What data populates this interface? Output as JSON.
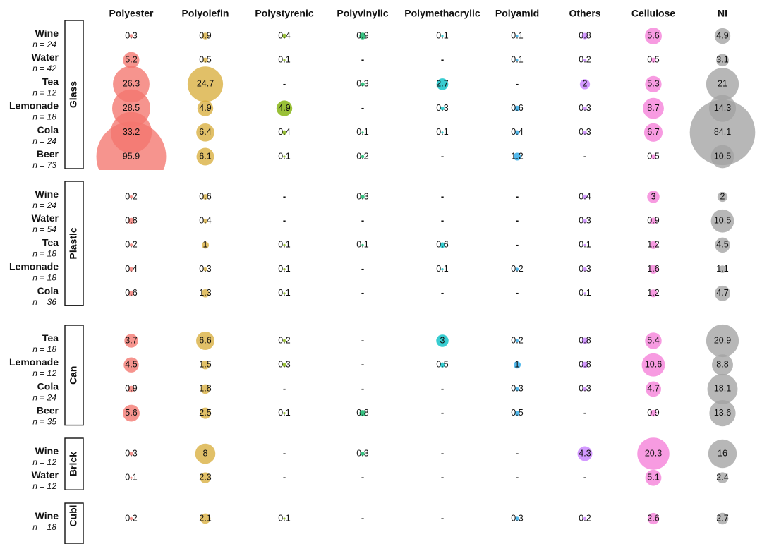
{
  "chart_data": {
    "type": "bubble-matrix",
    "columns": [
      "Polyester",
      "Polyolefin",
      "Polystyrenic",
      "Polyvinylic",
      "Polymethacrylic",
      "Polyamid",
      "Others",
      "Cellulose",
      "NI"
    ],
    "colors": [
      "#f4766e",
      "#d9ae3e",
      "#7cae00",
      "#00b15f",
      "#00bfc4",
      "#22a7e8",
      "#c77cff",
      "#f57fd9",
      "#a3a3a3"
    ],
    "missing_symbol": "-",
    "groups": [
      {
        "name": "Glass",
        "rows": [
          {
            "label": "Wine",
            "n": "n = 24",
            "values": [
              0.3,
              0.9,
              0.4,
              0.9,
              0.1,
              0.1,
              0.8,
              5.6,
              4.9
            ]
          },
          {
            "label": "Water",
            "n": "n = 42",
            "values": [
              5.2,
              0.5,
              0.1,
              null,
              null,
              0.1,
              0.2,
              0.5,
              3.1
            ]
          },
          {
            "label": "Tea",
            "n": "n = 12",
            "values": [
              26.3,
              24.7,
              null,
              0.3,
              2.7,
              null,
              2,
              5.3,
              21
            ]
          },
          {
            "label": "Lemonade",
            "n": "n = 18",
            "values": [
              28.5,
              4.9,
              4.9,
              null,
              0.3,
              0.6,
              0.3,
              8.7,
              14.3
            ]
          },
          {
            "label": "Cola",
            "n": "n = 24",
            "values": [
              33.2,
              6.4,
              0.4,
              0.1,
              0.1,
              0.4,
              0.3,
              6.7,
              84.1
            ]
          },
          {
            "label": "Beer",
            "n": "n = 73",
            "values": [
              95.9,
              6.1,
              0.1,
              0.2,
              null,
              1.2,
              null,
              0.5,
              10.5
            ]
          }
        ]
      },
      {
        "name": "Plastic",
        "rows": [
          {
            "label": "Wine",
            "n": "n = 24",
            "values": [
              0.2,
              0.6,
              null,
              0.3,
              null,
              null,
              0.4,
              3,
              2
            ]
          },
          {
            "label": "Water",
            "n": "n = 54",
            "values": [
              0.8,
              0.4,
              null,
              null,
              null,
              null,
              0.3,
              0.9,
              10.5
            ]
          },
          {
            "label": "Tea",
            "n": "n = 18",
            "values": [
              0.2,
              1,
              0.1,
              0.1,
              0.6,
              null,
              0.1,
              1.2,
              4.5
            ]
          },
          {
            "label": "Lemonade",
            "n": "n = 18",
            "values": [
              0.4,
              0.3,
              0.1,
              null,
              0.1,
              0.2,
              0.3,
              1.6,
              1.1
            ]
          },
          {
            "label": "Cola",
            "n": "n = 36",
            "values": [
              0.6,
              1.3,
              0.1,
              null,
              null,
              null,
              0.1,
              1.2,
              4.7
            ]
          }
        ]
      },
      {
        "name": "Can",
        "rows": [
          {
            "label": "Tea",
            "n": "n = 18",
            "values": [
              3.7,
              6.6,
              0.2,
              null,
              3,
              0.2,
              0.8,
              5.4,
              20.9
            ]
          },
          {
            "label": "Lemonade",
            "n": "n = 12",
            "values": [
              4.5,
              1.5,
              0.3,
              null,
              0.5,
              1,
              0.8,
              10.6,
              8.8
            ]
          },
          {
            "label": "Cola",
            "n": "n = 24",
            "values": [
              0.9,
              1.8,
              null,
              null,
              null,
              0.3,
              0.3,
              4.7,
              18.1
            ]
          },
          {
            "label": "Beer",
            "n": "n = 35",
            "values": [
              5.6,
              2.5,
              0.1,
              0.8,
              null,
              0.5,
              null,
              0.9,
              13.6
            ]
          }
        ]
      },
      {
        "name": "Brick",
        "rows": [
          {
            "label": "Wine",
            "n": "n = 12",
            "values": [
              0.3,
              8,
              null,
              0.3,
              null,
              null,
              4.3,
              20.3,
              16
            ]
          },
          {
            "label": "Water",
            "n": "n = 12",
            "values": [
              0.1,
              2.3,
              null,
              null,
              null,
              null,
              null,
              5.1,
              2.4
            ]
          }
        ]
      },
      {
        "name": "Cubi",
        "rows": [
          {
            "label": "Wine",
            "n": "n = 18",
            "values": [
              0.2,
              2.1,
              0.1,
              null,
              null,
              0.3,
              0.2,
              2.6,
              2.7
            ]
          }
        ]
      }
    ]
  }
}
